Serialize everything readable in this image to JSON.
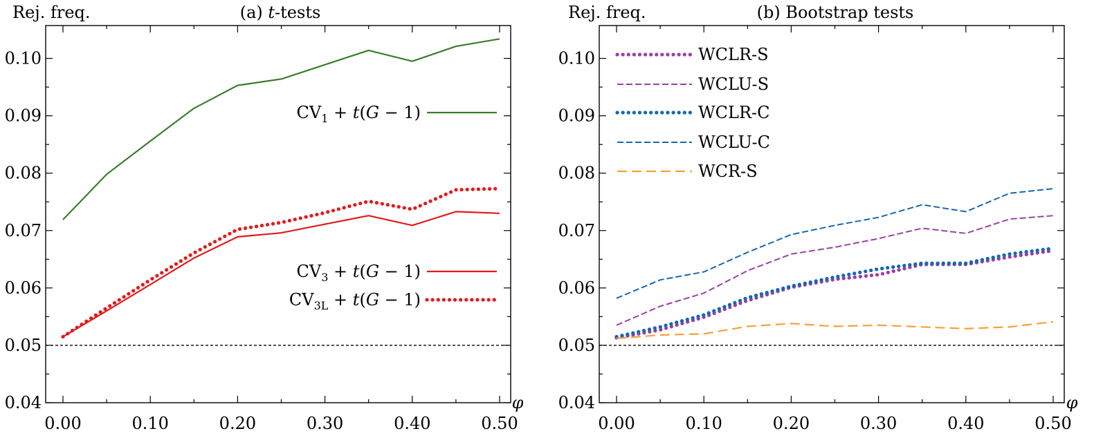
{
  "chart_data": [
    {
      "type": "line",
      "title_prefix": "(a) ",
      "title_italic": "t",
      "title_suffix": "-tests",
      "ylabel": "Rej. freq.",
      "xlabel": "φ",
      "ylim": [
        0.04,
        0.105
      ],
      "xlim": [
        0.0,
        0.5
      ],
      "yticks": [
        "0.04",
        "0.05",
        "0.06",
        "0.07",
        "0.08",
        "0.09",
        "0.10"
      ],
      "ytick_values": [
        0.04,
        0.05,
        0.06,
        0.07,
        0.08,
        0.09,
        0.1
      ],
      "xticks": [
        "0.00",
        "0.10",
        "0.20",
        "0.30",
        "0.40",
        "0.50"
      ],
      "xtick_values": [
        0.0,
        0.1,
        0.2,
        0.3,
        0.4,
        0.5
      ],
      "reference_line": 0.05,
      "x": [
        0.0,
        0.05,
        0.1,
        0.15,
        0.2,
        0.25,
        0.3,
        0.35,
        0.4,
        0.45,
        0.5
      ],
      "series": [
        {
          "name": "CV1 + t(G − 1)",
          "label_main": "CV",
          "label_sub": "1",
          "label_rest": " + t(G − 1)",
          "color": "#3a7d2c",
          "style": "solid",
          "values": [
            0.0719,
            0.0798,
            0.0856,
            0.0913,
            0.0953,
            0.0964,
            0.0989,
            0.1014,
            0.0995,
            0.1021,
            0.1034
          ]
        },
        {
          "name": "CV3 + t(G − 1)",
          "label_main": "CV",
          "label_sub": "3",
          "label_rest": " + t(G − 1)",
          "color": "#e31a1c",
          "style": "solid",
          "values": [
            0.0515,
            0.056,
            0.0606,
            0.0652,
            0.0689,
            0.0696,
            0.0711,
            0.0726,
            0.0709,
            0.0733,
            0.073
          ]
        },
        {
          "name": "CV3L + t(G − 1)",
          "label_main": "CV",
          "label_sub": "3L",
          "label_rest": " + t(G − 1)",
          "color": "#e31a1c",
          "style": "dotted",
          "values": [
            0.0515,
            0.0565,
            0.0614,
            0.0661,
            0.0702,
            0.0714,
            0.0731,
            0.0751,
            0.0737,
            0.0771,
            0.0773
          ]
        }
      ]
    },
    {
      "type": "line",
      "title_prefix": "(b) Bootstrap tests",
      "title_italic": "",
      "title_suffix": "",
      "ylabel": "Rej. freq.",
      "xlabel": "φ",
      "ylim": [
        0.04,
        0.105
      ],
      "xlim": [
        0.0,
        0.5
      ],
      "yticks": [
        "0.04",
        "0.05",
        "0.06",
        "0.07",
        "0.08",
        "0.09",
        "0.10"
      ],
      "ytick_values": [
        0.04,
        0.05,
        0.06,
        0.07,
        0.08,
        0.09,
        0.1
      ],
      "xticks": [
        "0.00",
        "0.10",
        "0.20",
        "0.30",
        "0.40",
        "0.50"
      ],
      "xtick_values": [
        0.0,
        0.1,
        0.2,
        0.3,
        0.4,
        0.5
      ],
      "reference_line": 0.05,
      "x": [
        0.0,
        0.05,
        0.1,
        0.15,
        0.2,
        0.25,
        0.3,
        0.35,
        0.4,
        0.45,
        0.5
      ],
      "series": [
        {
          "name": "WCLR-S",
          "color": "#9b3ea8",
          "style": "dotted",
          "values": [
            0.0513,
            0.0527,
            0.0549,
            0.0578,
            0.0601,
            0.0615,
            0.0623,
            0.0641,
            0.0641,
            0.0654,
            0.0665
          ]
        },
        {
          "name": "WCLU-S",
          "color": "#9b3ea8",
          "style": "dashed",
          "values": [
            0.0535,
            0.0568,
            0.0591,
            0.063,
            0.0659,
            0.0671,
            0.0686,
            0.0704,
            0.0695,
            0.072,
            0.0726
          ]
        },
        {
          "name": "WCLR-C",
          "color": "#1468b0",
          "style": "dotted",
          "values": [
            0.0515,
            0.0532,
            0.0553,
            0.0583,
            0.0603,
            0.0619,
            0.0633,
            0.0643,
            0.0643,
            0.0659,
            0.0669
          ]
        },
        {
          "name": "WCLU-C",
          "color": "#1468b0",
          "style": "dashed",
          "values": [
            0.0582,
            0.0614,
            0.0628,
            0.0662,
            0.0693,
            0.0709,
            0.0723,
            0.0745,
            0.0733,
            0.0765,
            0.0773
          ]
        },
        {
          "name": "WCR-S",
          "color": "#f5a133",
          "style": "longdash",
          "values": [
            0.0512,
            0.0518,
            0.052,
            0.0533,
            0.0538,
            0.0533,
            0.0535,
            0.0532,
            0.0529,
            0.0532,
            0.0541
          ]
        }
      ]
    }
  ]
}
